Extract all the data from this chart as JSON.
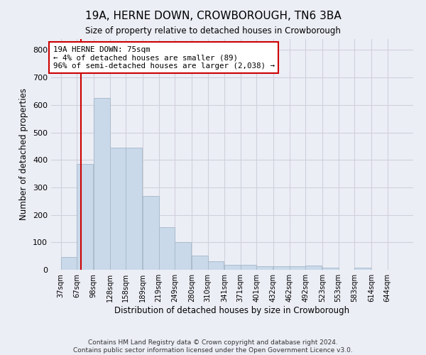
{
  "title": "19A, HERNE DOWN, CROWBOROUGH, TN6 3BA",
  "subtitle": "Size of property relative to detached houses in Crowborough",
  "xlabel": "Distribution of detached houses by size in Crowborough",
  "ylabel": "Number of detached properties",
  "footer_line1": "Contains HM Land Registry data © Crown copyright and database right 2024.",
  "footer_line2": "Contains public sector information licensed under the Open Government Licence v3.0.",
  "bar_labels": [
    "37sqm",
    "67sqm",
    "98sqm",
    "128sqm",
    "158sqm",
    "189sqm",
    "219sqm",
    "249sqm",
    "280sqm",
    "310sqm",
    "341sqm",
    "371sqm",
    "401sqm",
    "432sqm",
    "462sqm",
    "492sqm",
    "523sqm",
    "553sqm",
    "583sqm",
    "614sqm",
    "644sqm"
  ],
  "bar_values": [
    46,
    385,
    625,
    445,
    445,
    268,
    155,
    100,
    52,
    30,
    18,
    18,
    12,
    12,
    12,
    15,
    8,
    0,
    8,
    0,
    0
  ],
  "bar_color": "#c9d9ea",
  "bar_edge_color": "#aabccc",
  "grid_color": "#d0d0dc",
  "background_color": "#eceef6",
  "plot_bg_color": "#eceef6",
  "annotation_text": "19A HERNE DOWN: 75sqm\n← 4% of detached houses are smaller (89)\n96% of semi-detached houses are larger (2,038) →",
  "annotation_box_color": "#ffffff",
  "annotation_box_edge": "#cc0000",
  "red_line_x": 75,
  "red_line_color": "#cc0000",
  "ylim": [
    0,
    840
  ],
  "yticks": [
    0,
    100,
    200,
    300,
    400,
    500,
    600,
    700,
    800
  ],
  "bin_starts": [
    37,
    67,
    98,
    128,
    158,
    189,
    219,
    249,
    280,
    310,
    341,
    371,
    401,
    432,
    462,
    492,
    523,
    553,
    583,
    614,
    644
  ],
  "bin_width": 30
}
